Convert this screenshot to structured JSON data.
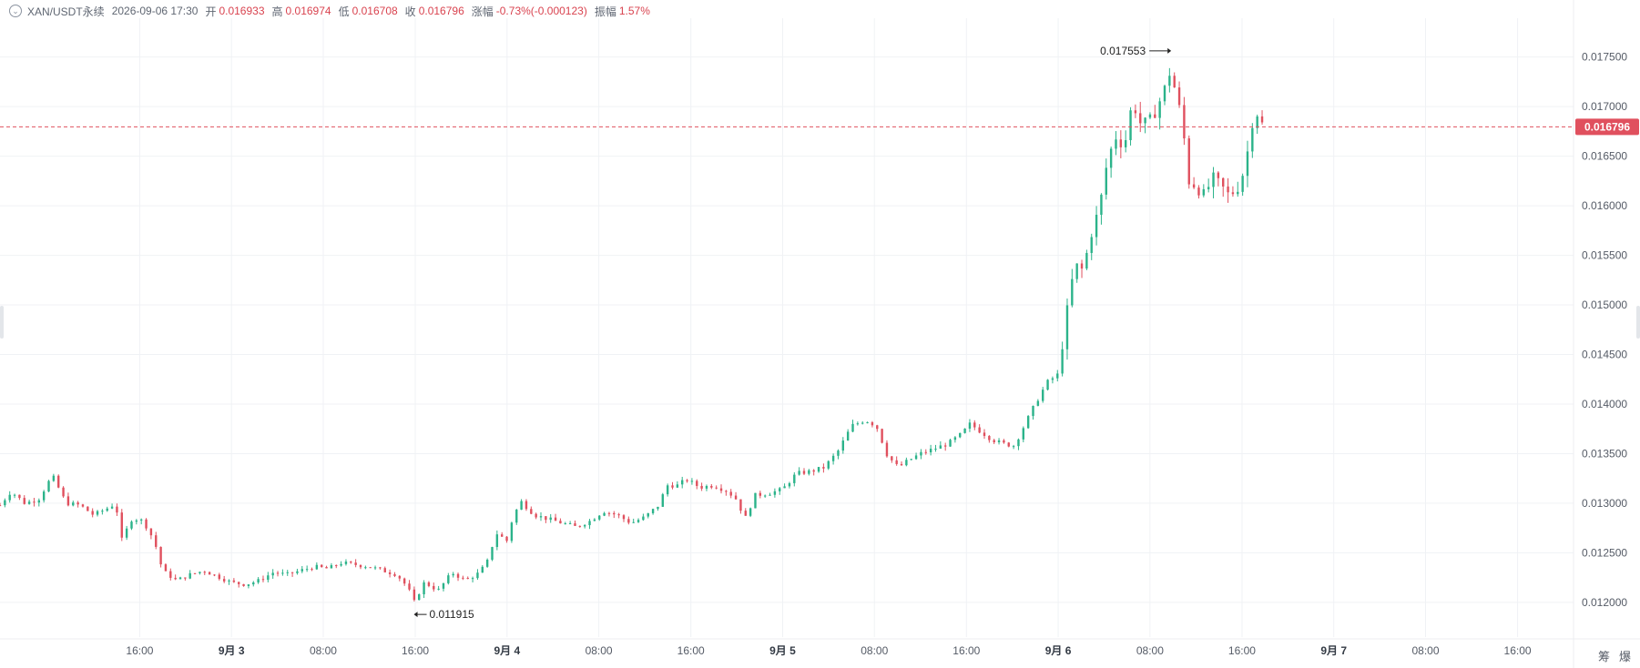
{
  "header": {
    "symbol": "XAN/USDT永续",
    "time": "2026-09-06 17:30",
    "open_label": "开",
    "open": "0.016933",
    "high_label": "高",
    "high": "0.016974",
    "low_label": "低",
    "low": "0.016708",
    "close_label": "收",
    "close": "0.016796",
    "change_label": "涨幅",
    "change": "-0.73%(-0.000123)",
    "amp_label": "振幅",
    "amp": "1.57%"
  },
  "footer": {
    "icon_a": "筹",
    "icon_b": "爆"
  },
  "chart_data": {
    "type": "candlestick",
    "ylim": [
      0.01165,
      0.0178
    ],
    "y_ticks": [
      "0.012000",
      "0.012500",
      "0.013000",
      "0.013500",
      "0.014000",
      "0.014500",
      "0.015000",
      "0.015500",
      "0.016000",
      "0.016500",
      "0.017000",
      "0.017500"
    ],
    "x_ticks": [
      {
        "label": "16:00",
        "bold": false,
        "pos": 2.667
      },
      {
        "label": "9月 3",
        "bold": true,
        "pos": 3.0
      },
      {
        "label": "08:00",
        "bold": false,
        "pos": 3.333
      },
      {
        "label": "16:00",
        "bold": false,
        "pos": 3.667
      },
      {
        "label": "9月 4",
        "bold": true,
        "pos": 4.0
      },
      {
        "label": "08:00",
        "bold": false,
        "pos": 4.333
      },
      {
        "label": "16:00",
        "bold": false,
        "pos": 4.667
      },
      {
        "label": "9月 5",
        "bold": true,
        "pos": 5.0
      },
      {
        "label": "08:00",
        "bold": false,
        "pos": 5.333
      },
      {
        "label": "16:00",
        "bold": false,
        "pos": 5.667
      },
      {
        "label": "9月 6",
        "bold": true,
        "pos": 6.0
      },
      {
        "label": "08:00",
        "bold": false,
        "pos": 6.333
      },
      {
        "label": "16:00",
        "bold": false,
        "pos": 6.667
      },
      {
        "label": "9月 7",
        "bold": true,
        "pos": 7.0
      },
      {
        "label": "08:00",
        "bold": false,
        "pos": 7.333
      },
      {
        "label": "16:00",
        "bold": false,
        "pos": 7.667
      }
    ],
    "x_range": [
      2.16,
      7.87
    ],
    "current_price": 0.016796,
    "current_label": "0.016796",
    "max_marker": {
      "label": "0.017553",
      "value": 0.017553,
      "pos": 6.41
    },
    "min_marker": {
      "label": "0.011915",
      "value": 0.011915,
      "pos": 3.662
    },
    "close_path": [
      [
        2.16,
        0.01298
      ],
      [
        2.2,
        0.01312
      ],
      [
        2.25,
        0.013
      ],
      [
        2.3,
        0.01304
      ],
      [
        2.35,
        0.01328
      ],
      [
        2.4,
        0.013
      ],
      [
        2.45,
        0.01298
      ],
      [
        2.5,
        0.01288
      ],
      [
        2.55,
        0.01295
      ],
      [
        2.58,
        0.013
      ],
      [
        2.6,
        0.01262
      ],
      [
        2.64,
        0.01285
      ],
      [
        2.68,
        0.01282
      ],
      [
        2.72,
        0.01262
      ],
      [
        2.75,
        0.01232
      ],
      [
        2.8,
        0.01222
      ],
      [
        2.85,
        0.01228
      ],
      [
        2.9,
        0.01232
      ],
      [
        2.95,
        0.01226
      ],
      [
        3.0,
        0.0122
      ],
      [
        3.05,
        0.01218
      ],
      [
        3.1,
        0.01222
      ],
      [
        3.15,
        0.0123
      ],
      [
        3.2,
        0.01228
      ],
      [
        3.25,
        0.01232
      ],
      [
        3.3,
        0.01236
      ],
      [
        3.35,
        0.01234
      ],
      [
        3.4,
        0.0124
      ],
      [
        3.45,
        0.01238
      ],
      [
        3.5,
        0.01236
      ],
      [
        3.55,
        0.01232
      ],
      [
        3.6,
        0.01228
      ],
      [
        3.64,
        0.01215
      ],
      [
        3.662,
        0.012
      ],
      [
        3.7,
        0.0122
      ],
      [
        3.75,
        0.01212
      ],
      [
        3.8,
        0.0123
      ],
      [
        3.85,
        0.01222
      ],
      [
        3.9,
        0.0123
      ],
      [
        3.93,
        0.01242
      ],
      [
        3.96,
        0.0127
      ],
      [
        4.0,
        0.01262
      ],
      [
        4.02,
        0.01285
      ],
      [
        4.05,
        0.01302
      ],
      [
        4.1,
        0.01288
      ],
      [
        4.15,
        0.01284
      ],
      [
        4.2,
        0.0128
      ],
      [
        4.25,
        0.01276
      ],
      [
        4.3,
        0.01282
      ],
      [
        4.35,
        0.01292
      ],
      [
        4.4,
        0.01288
      ],
      [
        4.45,
        0.0128
      ],
      [
        4.5,
        0.01286
      ],
      [
        4.55,
        0.01298
      ],
      [
        4.58,
        0.01318
      ],
      [
        4.62,
        0.01318
      ],
      [
        4.65,
        0.01324
      ],
      [
        4.7,
        0.01316
      ],
      [
        4.75,
        0.01318
      ],
      [
        4.8,
        0.01312
      ],
      [
        4.84,
        0.01302
      ],
      [
        4.86,
        0.01282
      ],
      [
        4.9,
        0.01308
      ],
      [
        4.95,
        0.0131
      ],
      [
        5.0,
        0.01314
      ],
      [
        5.05,
        0.0133
      ],
      [
        5.1,
        0.01332
      ],
      [
        5.15,
        0.01336
      ],
      [
        5.2,
        0.01352
      ],
      [
        5.25,
        0.01378
      ],
      [
        5.3,
        0.01384
      ],
      [
        5.34,
        0.01378
      ],
      [
        5.38,
        0.01348
      ],
      [
        5.42,
        0.01336
      ],
      [
        5.45,
        0.01342
      ],
      [
        5.5,
        0.0135
      ],
      [
        5.55,
        0.01355
      ],
      [
        5.6,
        0.0136
      ],
      [
        5.65,
        0.0137
      ],
      [
        5.68,
        0.0138
      ],
      [
        5.72,
        0.01372
      ],
      [
        5.76,
        0.01364
      ],
      [
        5.8,
        0.0136
      ],
      [
        5.84,
        0.01358
      ],
      [
        5.88,
        0.0138
      ],
      [
        5.92,
        0.01402
      ],
      [
        5.96,
        0.01422
      ],
      [
        6.0,
        0.0143
      ],
      [
        6.03,
        0.0149
      ],
      [
        6.06,
        0.0154
      ],
      [
        6.09,
        0.01535
      ],
      [
        6.12,
        0.01572
      ],
      [
        6.15,
        0.01598
      ],
      [
        6.18,
        0.01648
      ],
      [
        6.21,
        0.0167
      ],
      [
        6.24,
        0.0166
      ],
      [
        6.27,
        0.01706
      ],
      [
        6.3,
        0.01682
      ],
      [
        6.33,
        0.01684
      ],
      [
        6.36,
        0.017
      ],
      [
        6.39,
        0.0172
      ],
      [
        6.41,
        0.0174
      ],
      [
        6.43,
        0.01705
      ],
      [
        6.45,
        0.0169
      ],
      [
        6.47,
        0.01626
      ],
      [
        6.5,
        0.0162
      ],
      [
        6.53,
        0.0161
      ],
      [
        6.56,
        0.01628
      ],
      [
        6.59,
        0.0162
      ],
      [
        6.62,
        0.0161
      ],
      [
        6.65,
        0.01618
      ],
      [
        6.68,
        0.0164
      ],
      [
        6.7,
        0.01682
      ],
      [
        6.72,
        0.01695
      ],
      [
        6.74,
        0.01682
      ]
    ],
    "candle_count": 260
  }
}
